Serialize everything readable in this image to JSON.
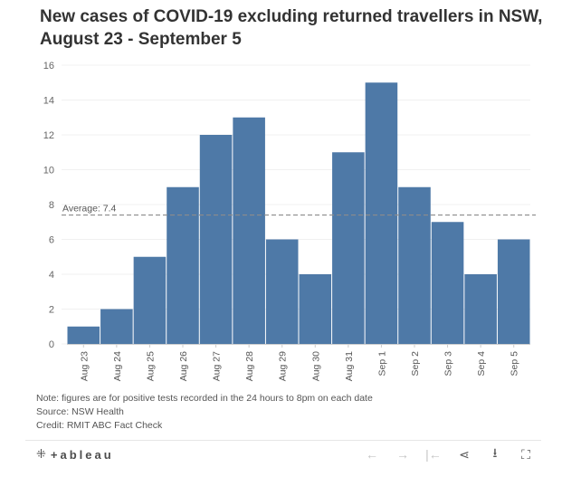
{
  "title": "New cases of COVID-19 excluding returned travellers in NSW, August 23 - September 5",
  "chart_data": {
    "type": "bar",
    "categories": [
      "Aug 23",
      "Aug 24",
      "Aug 25",
      "Aug 26",
      "Aug 27",
      "Aug 28",
      "Aug 29",
      "Aug 30",
      "Aug 31",
      "Sep 1",
      "Sep 2",
      "Sep 3",
      "Sep 4",
      "Sep 5"
    ],
    "values": [
      1,
      2,
      5,
      9,
      12,
      13,
      6,
      4,
      11,
      15,
      9,
      7,
      4,
      6
    ],
    "ylim": [
      0,
      16
    ],
    "yticks": [
      0,
      2,
      4,
      6,
      8,
      10,
      12,
      14,
      16
    ],
    "grid": true,
    "bar_color": "#4e79a7",
    "reference_line": {
      "value": 7.4,
      "label": "Average: 7.4"
    }
  },
  "notes": {
    "note": "Note: figures are for positive tests recorded in the 24 hours to 8pm on each date",
    "source": "Source: NSW Health",
    "credit": "Credit: RMIT ABC Fact Check"
  },
  "toolbar": {
    "logo_text": "+ableau",
    "tools": [
      {
        "name": "undo-icon",
        "glyph": "←"
      },
      {
        "name": "redo-icon",
        "glyph": "→"
      },
      {
        "name": "revert-icon",
        "glyph": "|←"
      },
      {
        "name": "share-icon",
        "glyph": "⋖"
      },
      {
        "name": "download-icon",
        "glyph": "⭳"
      },
      {
        "name": "fullscreen-icon",
        "glyph": "⛶"
      }
    ]
  }
}
